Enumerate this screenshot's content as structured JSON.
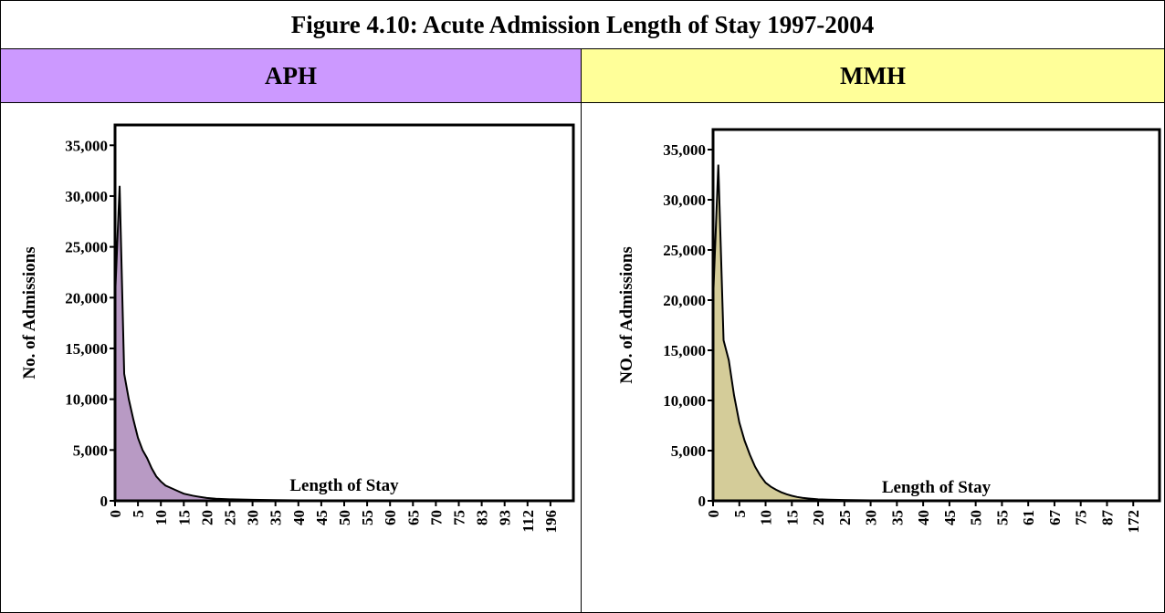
{
  "figure_title": "Figure 4.10:  Acute Admission Length of Stay 1997-2004",
  "panels": [
    {
      "header": "APH",
      "header_color": "#cc99ff"
    },
    {
      "header": "MMH",
      "header_color": "#ffff99"
    }
  ],
  "chart_data": [
    {
      "type": "area",
      "title": "APH",
      "xlabel": "Length of Stay",
      "ylabel": "No. of Admissions",
      "ylim": [
        0,
        37000
      ],
      "yticks": [
        0,
        5000,
        10000,
        15000,
        20000,
        25000,
        30000,
        35000
      ],
      "ytick_labels": [
        "0",
        "5,000",
        "10,000",
        "15,000",
        "20,000",
        "25,000",
        "30,000",
        "35,000"
      ],
      "xtick_labels": [
        "0",
        "5",
        "10",
        "15",
        "20",
        "25",
        "30",
        "35",
        "40",
        "45",
        "50",
        "55",
        "60",
        "65",
        "70",
        "75",
        "83",
        "93",
        "112",
        "196"
      ],
      "fill_color": "#b89ac4",
      "x": [
        0,
        1,
        2,
        3,
        4,
        5,
        6,
        7,
        8,
        9,
        10,
        11,
        12,
        13,
        14,
        15,
        16,
        17,
        18,
        19,
        20,
        22,
        25,
        30,
        35,
        40,
        50,
        60,
        75,
        93,
        196
      ],
      "values": [
        20000,
        31000,
        12500,
        10000,
        8000,
        6200,
        5000,
        4200,
        3200,
        2400,
        1900,
        1500,
        1300,
        1100,
        900,
        700,
        600,
        500,
        420,
        350,
        280,
        200,
        150,
        100,
        70,
        50,
        30,
        20,
        10,
        5,
        0
      ]
    },
    {
      "type": "area",
      "title": "MMH",
      "xlabel": "Length of Stay",
      "ylabel": "NO. of Admissions",
      "ylim": [
        0,
        37000
      ],
      "yticks": [
        0,
        5000,
        10000,
        15000,
        20000,
        25000,
        30000,
        35000
      ],
      "ytick_labels": [
        "0",
        "5,000",
        "10,000",
        "15,000",
        "20,000",
        "25,000",
        "30,000",
        "35,000"
      ],
      "xtick_labels": [
        "0",
        "5",
        "10",
        "15",
        "20",
        "25",
        "30",
        "35",
        "40",
        "45",
        "50",
        "55",
        "61",
        "67",
        "75",
        "87",
        "172"
      ],
      "fill_color": "#d4cc99",
      "x": [
        0,
        1,
        2,
        3,
        4,
        5,
        6,
        7,
        8,
        9,
        10,
        11,
        12,
        13,
        14,
        15,
        16,
        17,
        18,
        19,
        20,
        22,
        25,
        30,
        35,
        40,
        50,
        61,
        87,
        172
      ],
      "values": [
        20000,
        33500,
        16000,
        14000,
        10500,
        7800,
        6000,
        4600,
        3400,
        2500,
        1800,
        1400,
        1100,
        850,
        650,
        500,
        380,
        300,
        240,
        190,
        150,
        110,
        80,
        50,
        35,
        25,
        15,
        10,
        5,
        0
      ]
    }
  ]
}
